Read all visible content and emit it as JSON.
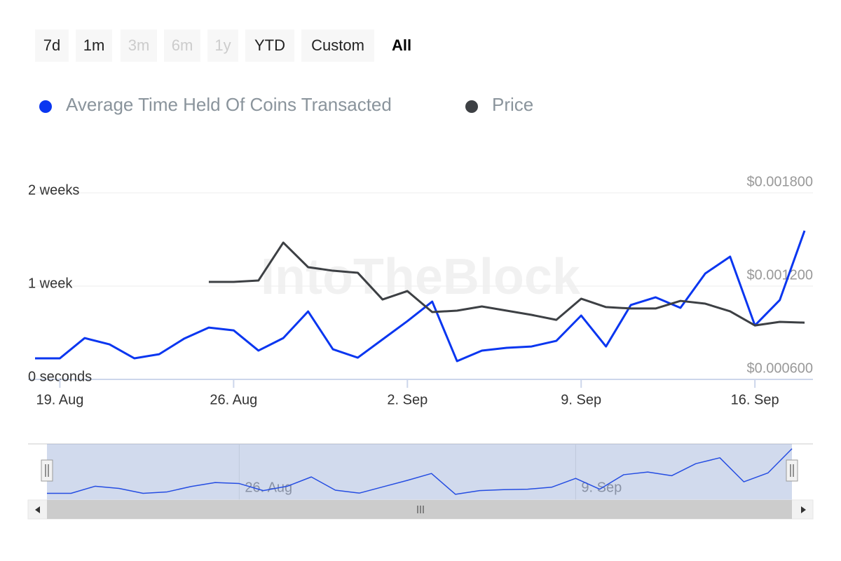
{
  "range_buttons": [
    {
      "label": "7d",
      "enabled": true
    },
    {
      "label": "1m",
      "enabled": true
    },
    {
      "label": "3m",
      "enabled": false
    },
    {
      "label": "6m",
      "enabled": false
    },
    {
      "label": "1y",
      "enabled": false
    },
    {
      "label": "YTD",
      "enabled": true
    },
    {
      "label": "Custom",
      "enabled": true
    },
    {
      "label": "All",
      "enabled": true,
      "active": true
    }
  ],
  "chart_data": {
    "type": "line",
    "watermark": "IntoTheBlock",
    "categories": [
      "18. Aug",
      "19. Aug",
      "20. Aug",
      "21. Aug",
      "22. Aug",
      "23. Aug",
      "24. Aug",
      "25. Aug",
      "26. Aug",
      "27. Aug",
      "28. Aug",
      "29. Aug",
      "30. Aug",
      "31. Aug",
      "1. Sep",
      "2. Sep",
      "3. Sep",
      "4. Sep",
      "5. Sep",
      "6. Sep",
      "7. Sep",
      "8. Sep",
      "9. Sep",
      "10. Sep",
      "11. Sep",
      "12. Sep",
      "13. Sep",
      "14. Sep",
      "15. Sep",
      "16. Sep",
      "17. Sep",
      "18. Sep"
    ],
    "xticks": [
      "19. Aug",
      "26. Aug",
      "2. Sep",
      "9. Sep",
      "16. Sep"
    ],
    "navigator_xticks": [
      "26. Aug",
      "9. Sep"
    ],
    "ylim": [
      0,
      14
    ],
    "yticks": [
      {
        "value": 0,
        "label": "0 seconds"
      },
      {
        "value": 7,
        "label": "1 week"
      },
      {
        "value": 14,
        "label": "2 weeks"
      }
    ],
    "y2lim": [
      0.0006,
      0.0018
    ],
    "y2ticks": [
      {
        "value": 0.0006,
        "label": "$0.000600"
      },
      {
        "value": 0.0012,
        "label": "$0.001200"
      },
      {
        "value": 0.0018,
        "label": "$0.001800"
      }
    ],
    "grid": true,
    "series": [
      {
        "name": "Average Time Held Of Coins Transacted",
        "color": "#0a36f0",
        "values": [
          1.58,
          1.58,
          3.1,
          2.63,
          1.58,
          1.89,
          3.05,
          3.89,
          3.68,
          2.16,
          3.1,
          5.1,
          2.26,
          1.63,
          3.0,
          4.37,
          5.84,
          1.37,
          2.16,
          2.37,
          2.47,
          2.89,
          4.79,
          2.47,
          5.58,
          6.16,
          5.37,
          7.95,
          9.21,
          4.05,
          5.95,
          11.16
        ]
      },
      {
        "name": "Price",
        "color": "#3d4044",
        "axis": "y2",
        "values": [
          null,
          null,
          null,
          null,
          null,
          null,
          null,
          0.001227,
          0.001227,
          0.001236,
          0.00148,
          0.001322,
          0.001299,
          0.001286,
          0.001114,
          0.001168,
          0.001033,
          0.001042,
          0.001069,
          0.001042,
          0.001015,
          0.000983,
          0.001119,
          0.001065,
          0.001056,
          0.001056,
          0.001105,
          0.001087,
          0.001038,
          0.000947,
          0.00097,
          0.000965
        ]
      }
    ]
  }
}
